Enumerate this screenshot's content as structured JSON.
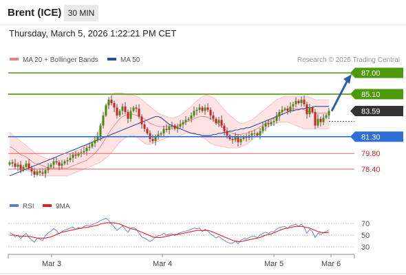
{
  "header": {
    "title": "Brent (ICE)",
    "timeframe": "30 MIN",
    "timestamp": "Thursday, March 5, 2026 1:22:21 PM CET"
  },
  "legend": {
    "ma20_bb": "MA 20 + Bollinger Bands",
    "ma50": "MA 50",
    "copyright": "Research © 2026 Trading Central",
    "rsi": "RSI",
    "ma9": "9MA"
  },
  "colors": {
    "resistance": "#4a9a0c",
    "pivot": "#2e6fd6",
    "support": "#e06060",
    "current": "#333333",
    "candle_up": "#3f8f0a",
    "candle_down": "#cc2222",
    "bollinger_fill": "#ffd9d9",
    "ma20": "#f08080",
    "ma50": "#2a4e9a",
    "rsi": "#5b7fd0",
    "ma9": "#dd2222",
    "arrow": "#2a5ea8"
  },
  "chart_data": {
    "type": "candlestick",
    "x_labels": [
      "Mar 3",
      "Mar 4",
      "Mar 5",
      "Mar 6"
    ],
    "price_range": [
      77.6,
      88.5
    ],
    "levels": [
      {
        "label": "87.00",
        "value": 87.0,
        "kind": "resistance"
      },
      {
        "label": "85.10",
        "value": 85.1,
        "kind": "resistance"
      },
      {
        "label": "83.59",
        "value": 83.59,
        "kind": "current"
      },
      {
        "label": "81.30",
        "value": 81.3,
        "kind": "pivot"
      },
      {
        "label": "79.80",
        "value": 79.8,
        "kind": "support"
      },
      {
        "label": "78.40",
        "value": 78.4,
        "kind": "support"
      }
    ],
    "close": [
      79.0,
      78.9,
      78.6,
      78.8,
      78.3,
      78.6,
      78.9,
      78.5,
      78.2,
      77.9,
      78.2,
      78.1,
      78.0,
      78.3,
      78.6,
      78.8,
      79.1,
      79.0,
      78.7,
      78.9,
      79.1,
      79.2,
      79.4,
      79.7,
      79.6,
      79.8,
      79.9,
      80.0,
      80.3,
      80.4,
      80.7,
      81.0,
      81.3,
      82.3,
      83.2,
      84.1,
      84.6,
      84.3,
      83.9,
      83.2,
      83.6,
      84.0,
      83.5,
      82.9,
      83.6,
      83.9,
      83.8,
      83.1,
      82.4,
      82.0,
      81.6,
      81.1,
      80.9,
      81.3,
      81.5,
      81.6,
      82.0,
      81.9,
      82.2,
      82.3,
      82.0,
      82.2,
      82.4,
      82.6,
      82.8,
      82.9,
      83.2,
      83.6,
      83.7,
      83.9,
      83.6,
      83.9,
      83.7,
      83.2,
      82.9,
      82.5,
      82.8,
      82.3,
      81.8,
      81.4,
      81.1,
      81.0,
      81.3,
      80.8,
      81.1,
      81.3,
      81.2,
      81.4,
      81.6,
      81.6,
      81.4,
      81.8,
      82.2,
      82.5,
      82.4,
      82.6,
      82.7,
      83.1,
      83.5,
      83.7,
      83.8,
      83.6,
      84.0,
      84.2,
      84.5,
      84.3,
      84.6,
      84.2,
      83.3,
      83.9,
      83.5,
      82.3,
      82.9,
      82.6,
      83.0,
      83.2,
      83.6
    ],
    "ma20": [
      80.4,
      80.3,
      80.1,
      79.9,
      79.7,
      79.6,
      79.5,
      79.3,
      79.1,
      78.9,
      78.9,
      78.8,
      78.7,
      78.6,
      78.5,
      78.5,
      78.5,
      78.5,
      78.5,
      78.5,
      78.5,
      78.5,
      78.6,
      78.7,
      78.8,
      78.9,
      79.0,
      79.1,
      79.2,
      79.4,
      79.6,
      79.8,
      80.1,
      80.4,
      80.8,
      81.2,
      81.6,
      82.0,
      82.3,
      82.6,
      82.9,
      83.1,
      83.2,
      83.3,
      83.3,
      83.3,
      83.2,
      83.1,
      83.0,
      82.9,
      82.7,
      82.5,
      82.4,
      82.3,
      82.2,
      82.2,
      82.2,
      82.2,
      82.2,
      82.2,
      82.2,
      82.3,
      82.4,
      82.5,
      82.6,
      82.7,
      82.8,
      82.9,
      83.0,
      83.1,
      83.1,
      83.1,
      83.0,
      82.9,
      82.8,
      82.6,
      82.4,
      82.2,
      82.0,
      81.8,
      81.7,
      81.6,
      81.5,
      81.5,
      81.5,
      81.6,
      81.6,
      81.7,
      81.8,
      81.9,
      82.0,
      82.2,
      82.3,
      82.5,
      82.6,
      82.8,
      83.0,
      83.2,
      83.4,
      83.5,
      83.7,
      83.8,
      83.8,
      83.8,
      83.8,
      83.8,
      83.8,
      83.7,
      83.6,
      83.5,
      83.5,
      83.4,
      83.4,
      83.4,
      83.4,
      83.4,
      83.4
    ],
    "bb_upper": [
      81.7,
      81.5,
      81.3,
      81.1,
      80.9,
      80.7,
      80.5,
      80.3,
      80.1,
      79.9,
      79.7,
      79.6,
      79.5,
      79.4,
      79.3,
      79.3,
      79.3,
      79.3,
      79.4,
      79.5,
      79.6,
      79.7,
      79.8,
      79.9,
      80.0,
      80.1,
      80.2,
      80.4,
      80.6,
      80.8,
      81.0,
      81.3,
      81.7,
      82.2,
      83.0,
      83.8,
      84.6,
      85.0,
      85.2,
      85.2,
      85.2,
      85.2,
      85.1,
      85.0,
      85.0,
      85.0,
      84.9,
      84.8,
      84.6,
      84.4,
      84.2,
      84.0,
      83.8,
      83.6,
      83.4,
      83.3,
      83.2,
      83.1,
      83.0,
      83.0,
      83.0,
      83.1,
      83.2,
      83.4,
      83.6,
      83.8,
      84.0,
      84.3,
      84.5,
      84.7,
      84.9,
      85.0,
      85.0,
      84.9,
      84.8,
      84.6,
      84.3,
      84.0,
      83.7,
      83.4,
      83.2,
      83.0,
      82.8,
      82.6,
      82.5,
      82.5,
      82.6,
      82.7,
      82.8,
      83.0,
      83.2,
      83.4,
      83.6,
      83.8,
      84.0,
      84.2,
      84.4,
      84.6,
      84.7,
      84.8,
      84.9,
      84.9,
      84.9,
      84.9,
      84.9,
      84.9,
      84.9,
      84.9,
      84.9,
      84.8,
      84.7,
      84.6,
      84.6,
      84.6,
      84.6,
      84.6,
      84.6
    ],
    "bb_lower": [
      79.2,
      79.1,
      78.9,
      78.8,
      78.6,
      78.4,
      78.3,
      78.2,
      78.1,
      78.0,
      77.9,
      77.9,
      77.8,
      77.8,
      77.8,
      77.8,
      77.8,
      77.8,
      77.8,
      77.8,
      77.8,
      77.8,
      77.9,
      78.0,
      78.1,
      78.2,
      78.3,
      78.4,
      78.5,
      78.6,
      78.7,
      78.8,
      78.9,
      79.0,
      79.2,
      79.4,
      79.6,
      79.9,
      80.2,
      80.5,
      80.8,
      81.0,
      81.2,
      81.3,
      81.4,
      81.4,
      81.3,
      81.1,
      80.9,
      80.7,
      80.6,
      80.6,
      80.7,
      80.8,
      80.9,
      81.0,
      81.1,
      81.2,
      81.3,
      81.3,
      81.3,
      81.3,
      81.4,
      81.5,
      81.6,
      81.6,
      81.6,
      81.5,
      81.5,
      81.4,
      81.2,
      81.1,
      80.9,
      80.7,
      80.6,
      80.5,
      80.5,
      80.4,
      80.4,
      80.3,
      80.3,
      80.3,
      80.3,
      80.3,
      80.4,
      80.5,
      80.6,
      80.8,
      81.0,
      81.2,
      81.4,
      81.6,
      81.8,
      82.0,
      82.2,
      82.3,
      82.4,
      82.5,
      82.6,
      82.6,
      82.6,
      82.6,
      82.5,
      82.4,
      82.3,
      82.2,
      82.1,
      82.0,
      82.0,
      82.0,
      82.0,
      82.0,
      82.0,
      82.0,
      82.0,
      82.0,
      82.0
    ],
    "ma50": [
      77.8,
      77.9,
      78.0,
      78.1,
      78.2,
      78.3,
      78.4,
      78.5,
      78.6,
      78.7,
      78.8,
      78.9,
      79.0,
      79.1,
      79.2,
      79.3,
      79.4,
      79.5,
      79.6,
      79.7,
      79.8,
      79.9,
      80.0,
      80.1,
      80.2,
      80.3,
      80.4,
      80.5,
      80.6,
      80.7,
      80.8,
      80.9,
      81.0,
      81.1,
      81.2,
      81.3,
      81.4,
      81.5,
      81.6,
      81.7,
      81.8,
      81.9,
      82.0,
      82.1,
      82.2,
      82.3,
      82.4,
      82.5,
      82.6,
      82.7,
      82.8,
      82.9,
      83.0,
      83.1,
      83.1,
      83.0,
      82.8,
      82.6,
      82.4,
      82.3,
      82.2,
      82.1,
      82.0,
      81.9,
      81.8,
      81.7,
      81.6,
      81.6,
      81.5,
      81.5,
      81.4,
      81.4,
      81.4,
      81.4,
      81.5,
      81.5,
      81.6,
      81.6,
      81.7,
      81.7,
      81.8,
      81.8,
      81.9,
      81.9,
      82.0,
      82.0,
      82.1,
      82.1,
      82.2,
      82.3,
      82.4,
      82.5,
      82.6,
      82.7,
      82.8,
      82.9,
      83.0,
      83.1,
      83.2,
      83.3,
      83.4,
      83.5,
      83.6,
      83.6,
      83.7,
      83.7,
      83.8,
      83.8,
      83.9,
      83.9,
      83.9,
      84.0,
      84.0,
      84.0,
      84.0,
      84.0,
      84.0
    ],
    "forecast_arrow": {
      "from": 83.59,
      "to": 87.0
    },
    "rsi": {
      "range": [
        20,
        80
      ],
      "ticks": [
        70,
        50,
        30
      ],
      "rsi": [
        54,
        52,
        47,
        50,
        44,
        49,
        53,
        46,
        42,
        38,
        45,
        43,
        41,
        49,
        54,
        57,
        61,
        58,
        52,
        56,
        59,
        60,
        62,
        64,
        60,
        63,
        61,
        65,
        67,
        66,
        68,
        70,
        72,
        75,
        77,
        79,
        75,
        69,
        64,
        58,
        62,
        66,
        60,
        55,
        62,
        63,
        60,
        53,
        47,
        45,
        42,
        39,
        42,
        47,
        49,
        50,
        53,
        50,
        52,
        52,
        49,
        52,
        54,
        56,
        57,
        58,
        60,
        62,
        61,
        62,
        56,
        60,
        57,
        52,
        49,
        45,
        48,
        44,
        41,
        38,
        36,
        36,
        40,
        35,
        41,
        44,
        43,
        46,
        48,
        48,
        46,
        50,
        53,
        55,
        53,
        56,
        56,
        60,
        63,
        64,
        65,
        61,
        66,
        67,
        69,
        65,
        69,
        63,
        53,
        60,
        56,
        46,
        53,
        51,
        54,
        56,
        59
      ],
      "ma9": [
        50,
        50,
        50,
        49,
        48,
        48,
        48,
        48,
        47,
        46,
        45,
        45,
        45,
        45,
        46,
        47,
        49,
        51,
        53,
        55,
        56,
        57,
        58,
        59,
        60,
        61,
        62,
        63,
        63,
        64,
        65,
        66,
        67,
        69,
        70,
        71,
        71,
        71,
        71,
        70,
        69,
        67,
        65,
        63,
        61,
        60,
        59,
        57,
        55,
        53,
        51,
        49,
        47,
        46,
        46,
        46,
        47,
        48,
        49,
        50,
        51,
        51,
        52,
        53,
        54,
        55,
        56,
        57,
        58,
        58,
        58,
        58,
        58,
        57,
        55,
        53,
        51,
        49,
        47,
        45,
        43,
        41,
        40,
        39,
        39,
        40,
        41,
        42,
        43,
        44,
        45,
        46,
        48,
        50,
        51,
        52,
        54,
        56,
        58,
        60,
        61,
        62,
        63,
        64,
        65,
        65,
        65,
        64,
        63,
        62,
        60,
        58,
        56,
        55,
        54,
        54,
        55
      ]
    }
  }
}
